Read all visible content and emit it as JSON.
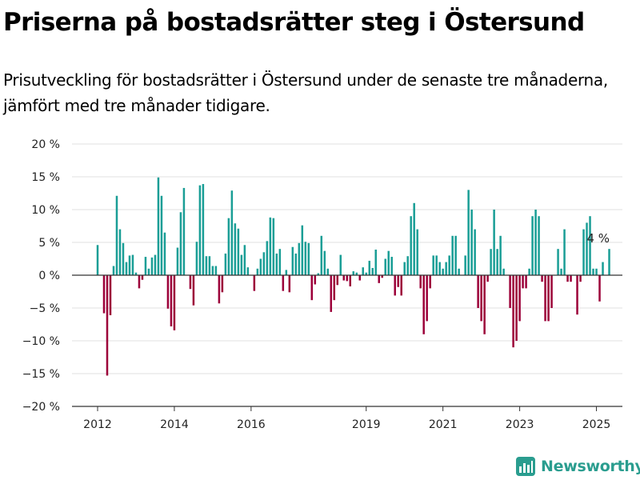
{
  "title": "Priserna på bostadsrätter steg i Östersund",
  "subtitle": "Prisutveckling för bostadsrätter i Östersund under de senaste tre månaderna, jämfört med tre månader tidigare.",
  "brand": {
    "name": "Newsworthy",
    "icon": "newsworthy-logo-icon",
    "color": "#2a9d8f"
  },
  "chart_data": {
    "type": "bar",
    "title": "Priserna på bostadsrätter steg i Östersund",
    "subtitle": "Prisutveckling för bostadsrätter i Östersund under de senaste tre månaderna, jämfört med tre månader tidigare.",
    "xlabel": "",
    "ylabel": "",
    "ylim": [
      -20,
      20
    ],
    "y_ticks": [
      20,
      15,
      10,
      5,
      0,
      -5,
      -10,
      -15,
      -20
    ],
    "y_tick_labels": [
      "20 %",
      "15 %",
      "10 %",
      "5 %",
      "0 %",
      "−5 %",
      "−10 %",
      "−15 %",
      "−20 %"
    ],
    "x_start": "2012-01",
    "x_ticks": [
      {
        "label": "2012",
        "month": "2012-01"
      },
      {
        "label": "2014",
        "month": "2014-01"
      },
      {
        "label": "2016",
        "month": "2016-01"
      },
      {
        "label": "2019",
        "month": "2019-01"
      },
      {
        "label": "2021",
        "month": "2021-01"
      },
      {
        "label": "2023",
        "month": "2023-01"
      },
      {
        "label": "2025",
        "month": "2025-01"
      }
    ],
    "grid": true,
    "legend": "none",
    "colors": {
      "positive": "#1a9e96",
      "negative": "#9c0039",
      "zero_line": "#333333",
      "grid": "#e1e1e1"
    },
    "last_value_label": "4 %",
    "values": [
      4.6,
      null,
      -5.8,
      -15.3,
      -6.1,
      1.4,
      12.1,
      7.0,
      4.9,
      2.0,
      3.0,
      3.1,
      0.4,
      -2.0,
      -0.7,
      2.8,
      1.0,
      2.7,
      3.1,
      14.9,
      12.1,
      6.5,
      -5.1,
      -7.8,
      -8.4,
      4.2,
      9.6,
      13.3,
      null,
      -2.1,
      -4.6,
      5.1,
      13.7,
      13.9,
      2.9,
      2.9,
      1.4,
      1.4,
      -4.3,
      -2.6,
      3.3,
      8.7,
      12.9,
      7.9,
      7.1,
      3.1,
      4.6,
      1.2,
      null,
      -2.4,
      1.0,
      2.5,
      3.5,
      5.2,
      8.8,
      8.7,
      3.3,
      4.0,
      -2.4,
      0.8,
      -2.6,
      4.3,
      3.3,
      4.9,
      7.6,
      5.1,
      4.9,
      -3.8,
      -1.4,
      0.3,
      6.0,
      3.7,
      1.0,
      -5.6,
      -3.8,
      -1.5,
      3.1,
      -0.8,
      -0.9,
      -1.7,
      0.6,
      0.4,
      -0.8,
      1.2,
      0.4,
      2.2,
      1.1,
      3.9,
      -1.2,
      -0.4,
      2.5,
      3.7,
      2.8,
      -3.1,
      -1.8,
      -3.1,
      2.0,
      2.9,
      9.0,
      11.0,
      7.0,
      -2.0,
      -9.0,
      -7.0,
      -2.0,
      3.0,
      3.0,
      2.0,
      1.0,
      2.0,
      3.0,
      6.0,
      6.0,
      1.0,
      null,
      3.0,
      13.0,
      10.0,
      7.0,
      -5.0,
      -7.0,
      -9.0,
      -1.0,
      4.0,
      10.0,
      4.0,
      6.0,
      1.0,
      null,
      -5.0,
      -11.0,
      -10.0,
      -7.0,
      -2.0,
      -2.0,
      1.0,
      9.0,
      10.0,
      9.0,
      -1.0,
      -7.0,
      -7.0,
      -5.0,
      null,
      4.0,
      1.0,
      7.0,
      -1.0,
      -1.0,
      null,
      -6.0,
      -1.0,
      7.0,
      8.0,
      9.0,
      1.0,
      1.0,
      -4.0,
      2.0,
      null,
      4.0
    ]
  }
}
